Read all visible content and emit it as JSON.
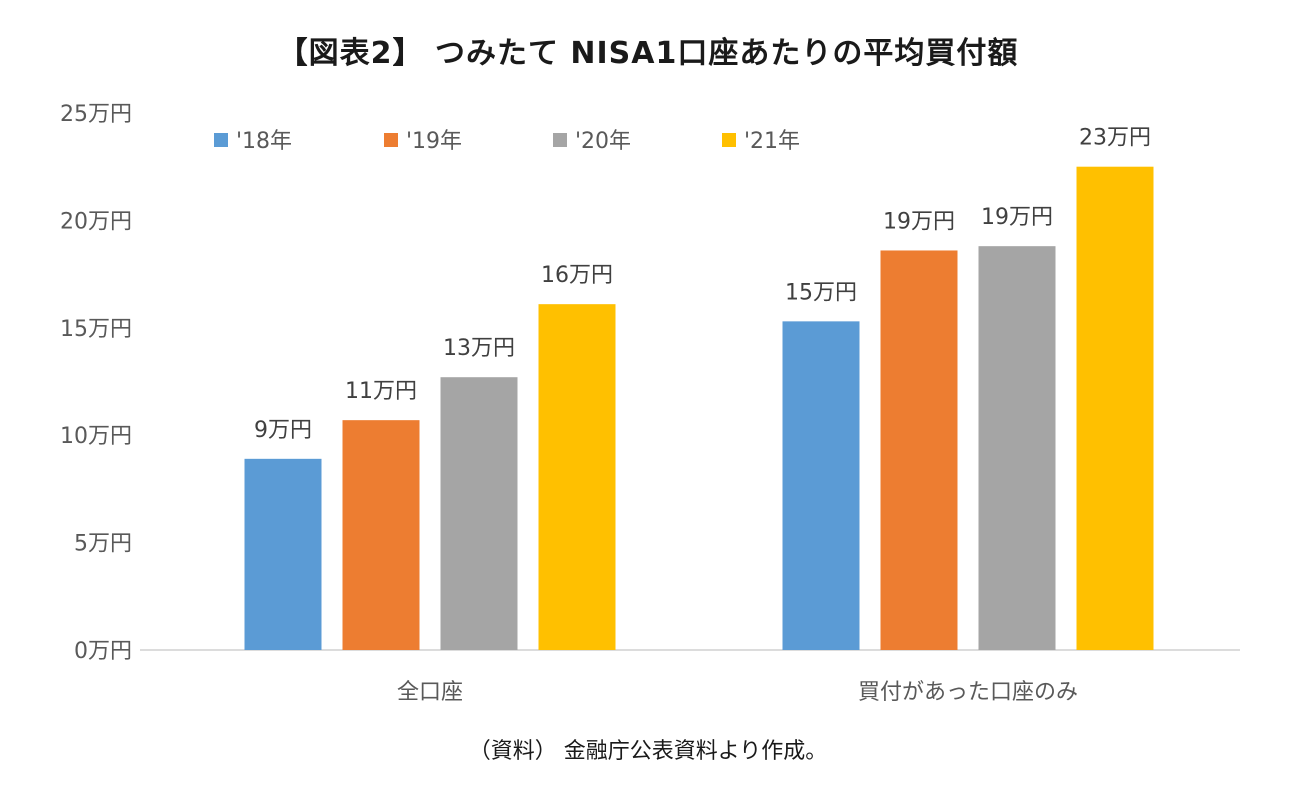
{
  "title": "【図表2】 つみたて NISA1口座あたりの平均買付額",
  "source_note": "（資料） 金融庁公表資料より作成。",
  "chart_data": {
    "type": "bar",
    "categories": [
      "全口座",
      "買付があった口座のみ"
    ],
    "ylim": [
      0,
      25
    ],
    "yticks": [
      0,
      5,
      10,
      15,
      20,
      25
    ],
    "ytick_labels": [
      "0万円",
      "5万円",
      "10万円",
      "15万円",
      "20万円",
      "25万円"
    ],
    "legend_position": "top-left",
    "grid": false,
    "series": [
      {
        "name": "'18年",
        "color": "#5B9BD5",
        "values": [
          8.9,
          15.3
        ],
        "labels": [
          "9万円",
          "15万円"
        ]
      },
      {
        "name": "'19年",
        "color": "#ED7D31",
        "values": [
          10.7,
          18.6
        ],
        "labels": [
          "11万円",
          "19万円"
        ]
      },
      {
        "name": "'20年",
        "color": "#A5A5A5",
        "values": [
          12.7,
          18.8
        ],
        "labels": [
          "13万円",
          "19万円"
        ]
      },
      {
        "name": "'21年",
        "color": "#FFC000",
        "values": [
          16.1,
          22.5
        ],
        "labels": [
          "16万円",
          "23万円"
        ]
      }
    ]
  }
}
